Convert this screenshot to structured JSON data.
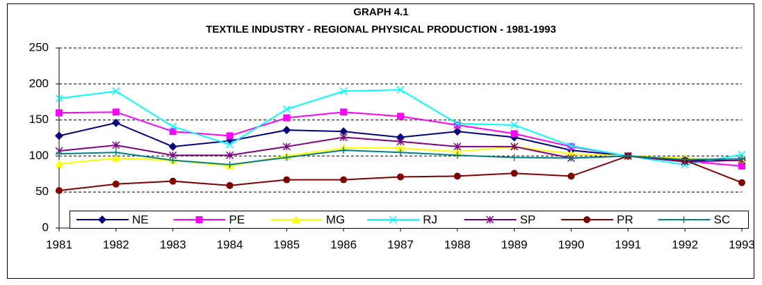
{
  "chart_data": {
    "type": "line",
    "title": "GRAPH 4.1",
    "subtitle": "TEXTILE INDUSTRY - REGIONAL PHYSICAL PRODUCTION - 1981-1993",
    "categories": [
      "1981",
      "1982",
      "1983",
      "1984",
      "1985",
      "1986",
      "1987",
      "1988",
      "1989",
      "1990",
      "1991",
      "1992",
      "1993"
    ],
    "ylim": [
      0,
      250
    ],
    "yticks": [
      0,
      50,
      100,
      150,
      200,
      250
    ],
    "grid": true,
    "legend": "bottom",
    "series": [
      {
        "name": "NE",
        "color": "#000080",
        "marker": "diamond",
        "values": [
          128,
          146,
          113,
          121,
          136,
          134,
          126,
          134,
          126,
          108,
          100,
          94,
          94
        ]
      },
      {
        "name": "PE",
        "color": "#ff00ff",
        "marker": "square",
        "values": [
          160,
          161,
          134,
          128,
          153,
          161,
          155,
          143,
          131,
          113,
          100,
          93,
          86
        ]
      },
      {
        "name": "MG",
        "color": "#ffff00",
        "marker": "triangle",
        "values": [
          89,
          97,
          94,
          86,
          100,
          111,
          111,
          106,
          113,
          103,
          100,
          97,
          95
        ]
      },
      {
        "name": "RJ",
        "color": "#00ffff",
        "marker": "x",
        "values": [
          180,
          190,
          141,
          116,
          165,
          190,
          192,
          145,
          143,
          114,
          100,
          88,
          102
        ]
      },
      {
        "name": "SP",
        "color": "#800080",
        "marker": "star",
        "values": [
          107,
          115,
          101,
          101,
          113,
          126,
          120,
          113,
          113,
          97,
          100,
          92,
          94
        ]
      },
      {
        "name": "PR",
        "color": "#800000",
        "marker": "circle",
        "values": [
          52,
          61,
          65,
          59,
          67,
          67,
          71,
          72,
          76,
          72,
          100,
          94,
          63
        ]
      },
      {
        "name": "SC",
        "color": "#008080",
        "marker": "plus",
        "values": [
          103,
          105,
          94,
          88,
          98,
          108,
          105,
          101,
          98,
          97,
          100,
          95,
          96
        ]
      }
    ]
  }
}
